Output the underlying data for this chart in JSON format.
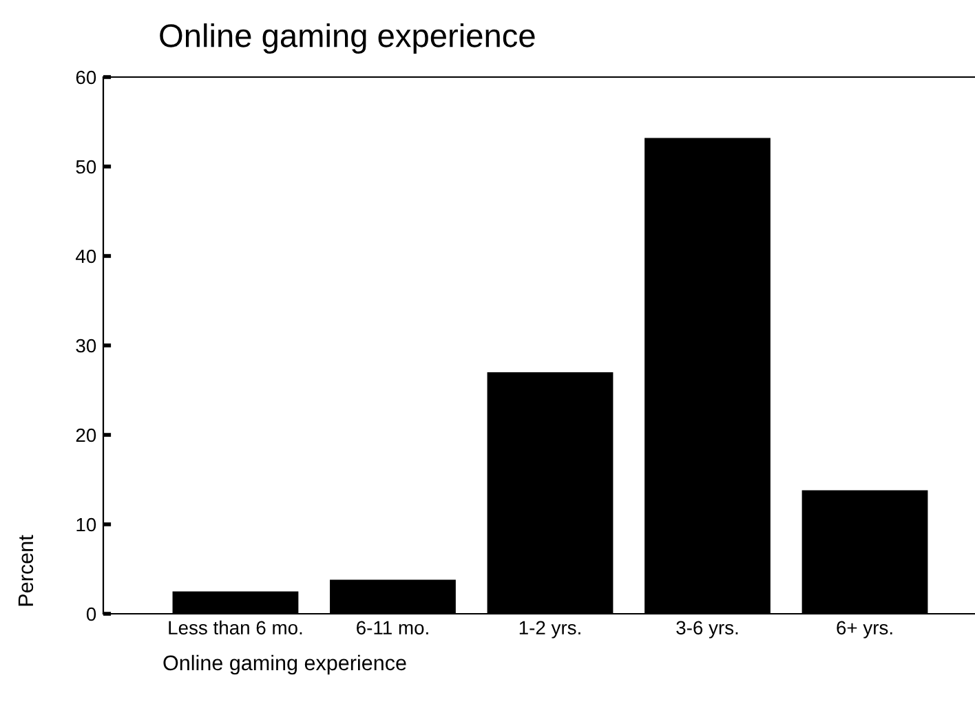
{
  "chart_data": {
    "type": "bar",
    "title": "Online gaming experience",
    "xlabel": "Online gaming experience",
    "ylabel": "Percent",
    "categories": [
      "Less than 6 mo.",
      "6-11 mo.",
      "1-2 yrs.",
      "3-6 yrs.",
      "6+ yrs."
    ],
    "values": [
      2.5,
      3.8,
      27.0,
      53.2,
      13.8
    ],
    "color": "#000000",
    "ylim": [
      0,
      60
    ],
    "yticks": [
      0,
      10,
      20,
      30,
      40,
      50,
      60
    ],
    "grid": false,
    "legend": false
  }
}
